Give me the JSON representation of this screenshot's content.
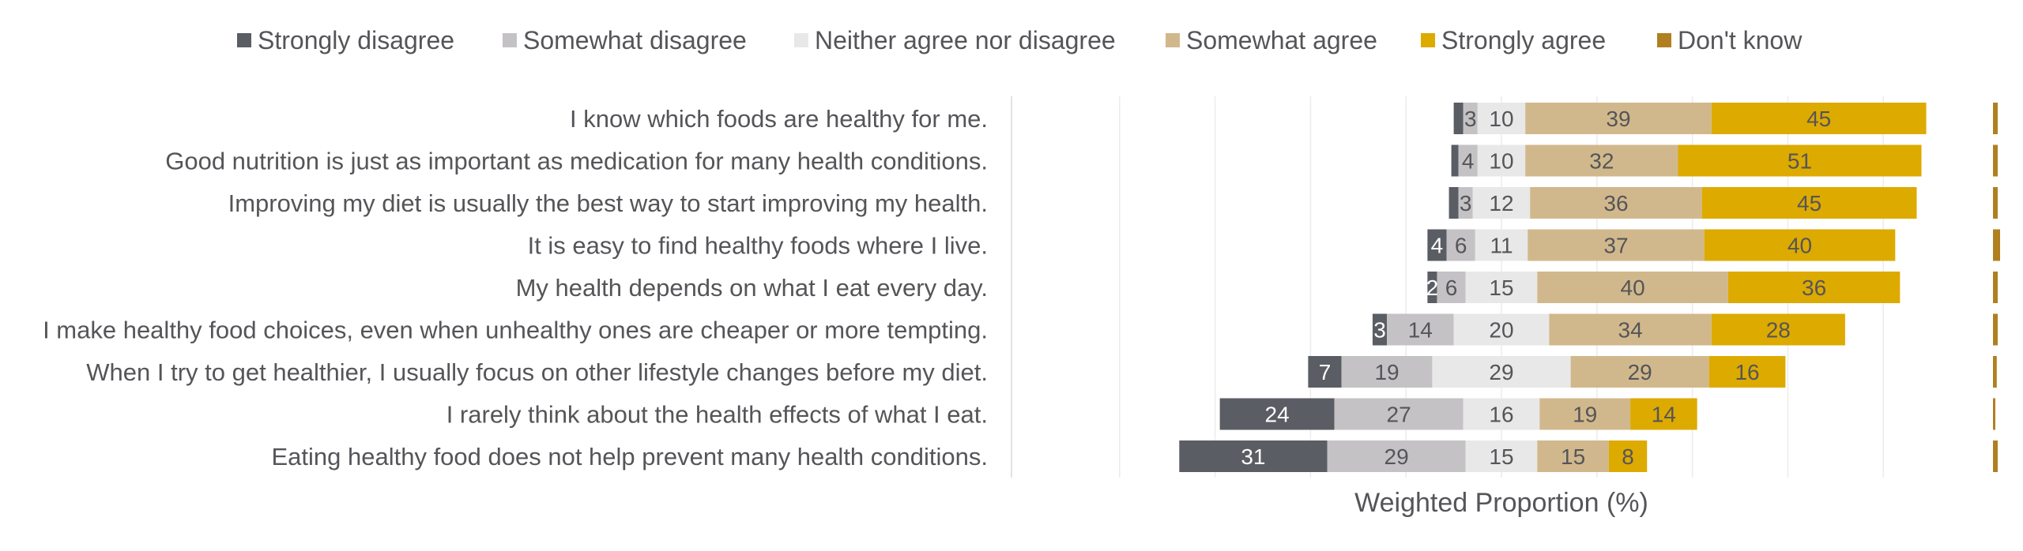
{
  "chart_data": {
    "type": "bar",
    "orientation": "horizontal",
    "stacking": "diverging",
    "xlabel": "Weighted Proportion (%)",
    "legend_position": "top",
    "grid": true,
    "categories": [
      "I know which foods are healthy for me.",
      "Good nutrition is just as important as medication for many health conditions.",
      "Improving my diet is usually the best way to start improving my health.",
      "It is easy to find healthy foods where I live.",
      "My health depends on what I eat every day.",
      "I make healthy food choices, even when unhealthy ones are cheaper or more tempting.",
      "When I try to get healthier, I usually focus on other lifestyle changes before my diet.",
      "I rarely think about the health effects of what I eat.",
      "Eating healthy food does not help prevent many health conditions."
    ],
    "series": [
      {
        "name": "Strongly disagree",
        "color": "#5a5d63",
        "label_color": "#ffffff",
        "values": [
          2,
          1.5,
          2,
          4,
          2,
          3,
          7,
          24,
          31
        ],
        "labels": [
          "",
          "",
          "",
          "4",
          "2",
          "3",
          "7",
          "24",
          "31"
        ]
      },
      {
        "name": "Somewhat disagree",
        "color": "#c4c2c4",
        "label_color": "#555559",
        "values": [
          3,
          4,
          3,
          6,
          6,
          14,
          19,
          27,
          29
        ],
        "labels": [
          "3",
          "4",
          "3",
          "6",
          "6",
          "14",
          "19",
          "27",
          "29"
        ]
      },
      {
        "name": "Neither agree nor disagree",
        "color": "#e8e8e8",
        "label_color": "#555559",
        "values": [
          10,
          10,
          12,
          11,
          15,
          20,
          29,
          16,
          15
        ],
        "labels": [
          "10",
          "10",
          "12",
          "11",
          "15",
          "20",
          "29",
          "16",
          "15"
        ]
      },
      {
        "name": "Somewhat agree",
        "color": "#d1b88c",
        "label_color": "#555559",
        "values": [
          39,
          32,
          36,
          37,
          40,
          34,
          29,
          19,
          15
        ],
        "labels": [
          "39",
          "32",
          "36",
          "37",
          "40",
          "34",
          "29",
          "19",
          "15"
        ]
      },
      {
        "name": "Strongly agree",
        "color": "#ddaa00",
        "label_color": "#555559",
        "values": [
          45,
          51,
          45,
          40,
          36,
          28,
          16,
          14,
          8
        ],
        "labels": [
          "45",
          "51",
          "45",
          "40",
          "36",
          "28",
          "16",
          "14",
          "8"
        ]
      },
      {
        "name": "Don't know",
        "color": "#b08020",
        "label_color": "#555559",
        "values": [
          1,
          1,
          1,
          1.5,
          1,
          1,
          0.8,
          0.5,
          1
        ],
        "labels": [
          "",
          "",
          "",
          "",
          "",
          "",
          "",
          "",
          ""
        ]
      }
    ]
  }
}
